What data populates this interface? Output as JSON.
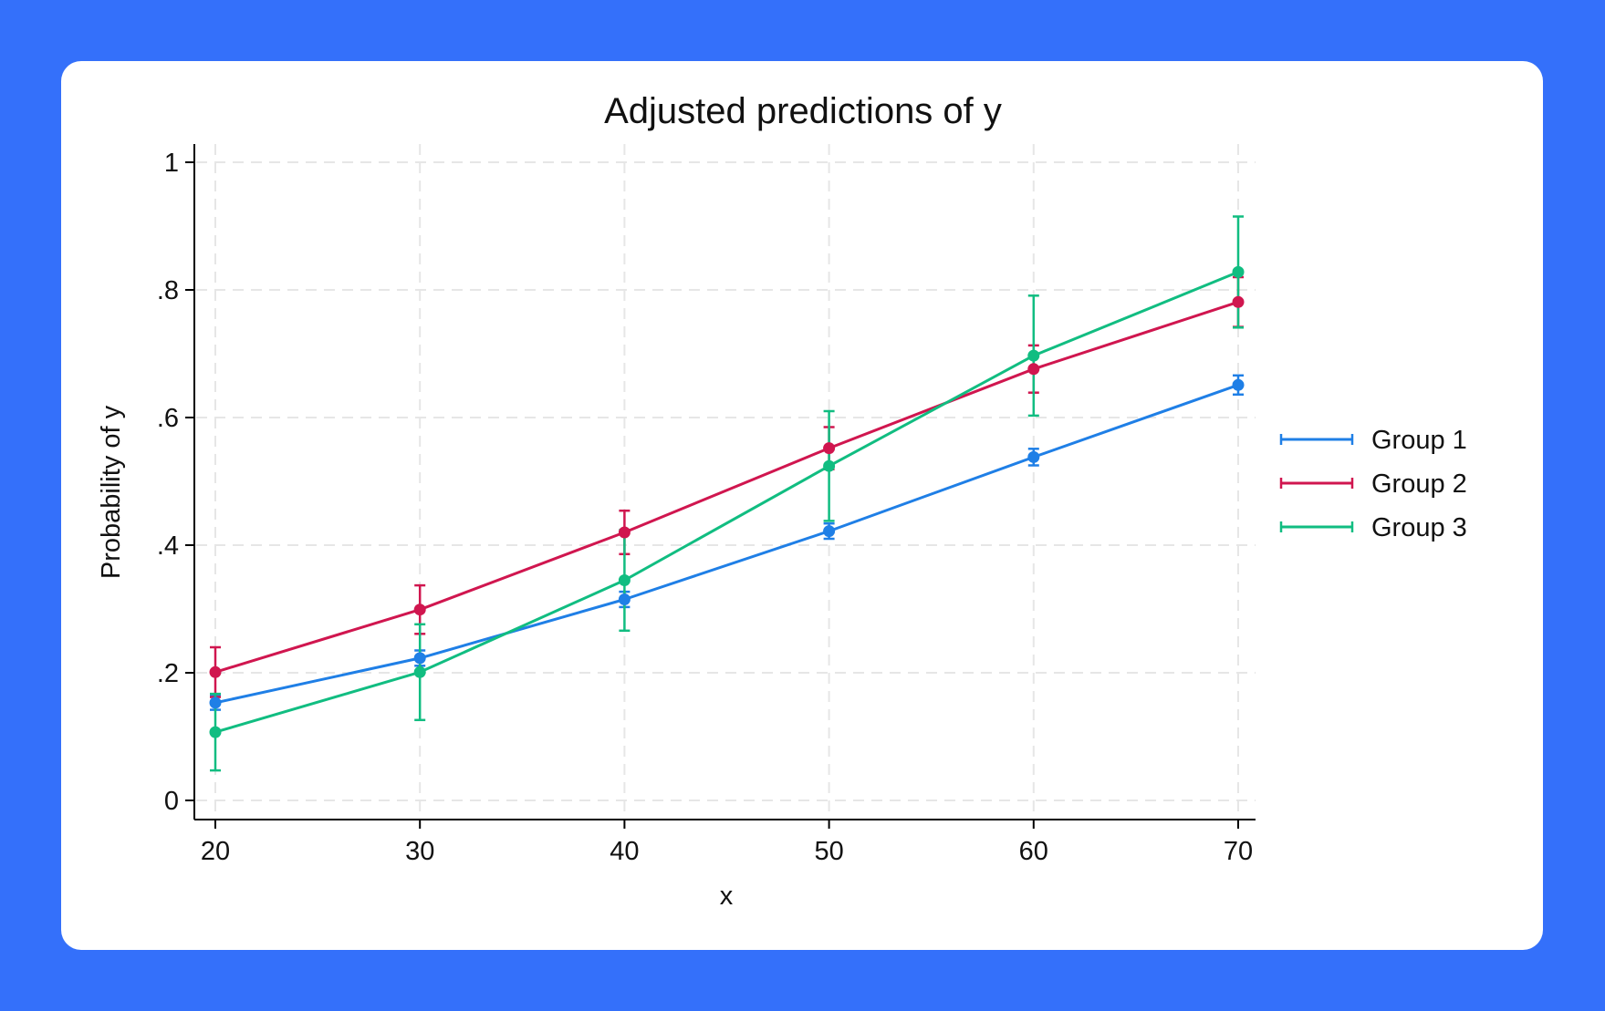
{
  "colors": {
    "background": "#3470fa",
    "card": "#ffffff",
    "grid": "#e6e6e6",
    "axis": "#000000"
  },
  "chart_data": {
    "type": "line",
    "title": "Adjusted predictions of y",
    "xlabel": "x",
    "ylabel": "Probability of y",
    "x": [
      20,
      30,
      40,
      50,
      60,
      70
    ],
    "xlim": [
      20,
      70
    ],
    "ylim": [
      0,
      1
    ],
    "xticks": [
      20,
      30,
      40,
      50,
      60,
      70
    ],
    "xtick_labels": [
      "20",
      "30",
      "40",
      "50",
      "60",
      "70"
    ],
    "yticks": [
      0,
      0.2,
      0.4,
      0.6,
      0.8,
      1
    ],
    "ytick_labels": [
      "0",
      ".2",
      ".4",
      ".6",
      ".8",
      "1"
    ],
    "grid": true,
    "legend_position": "right",
    "series": [
      {
        "name": "Group 1",
        "color": "#1f7fe6",
        "values": [
          0.153,
          0.223,
          0.315,
          0.422,
          0.538,
          0.651
        ],
        "lower": [
          0.142,
          0.211,
          0.303,
          0.41,
          0.525,
          0.636
        ],
        "upper": [
          0.164,
          0.235,
          0.327,
          0.434,
          0.551,
          0.666
        ]
      },
      {
        "name": "Group 2",
        "color": "#d0164f",
        "values": [
          0.201,
          0.299,
          0.42,
          0.552,
          0.676,
          0.781
        ],
        "lower": [
          0.162,
          0.261,
          0.386,
          0.519,
          0.639,
          0.742
        ],
        "upper": [
          0.24,
          0.337,
          0.454,
          0.585,
          0.713,
          0.82
        ]
      },
      {
        "name": "Group 3",
        "color": "#11bd81",
        "values": [
          0.107,
          0.201,
          0.345,
          0.524,
          0.697,
          0.828
        ],
        "lower": [
          0.047,
          0.126,
          0.266,
          0.438,
          0.603,
          0.741
        ],
        "upper": [
          0.167,
          0.276,
          0.424,
          0.61,
          0.791,
          0.915
        ]
      }
    ]
  }
}
